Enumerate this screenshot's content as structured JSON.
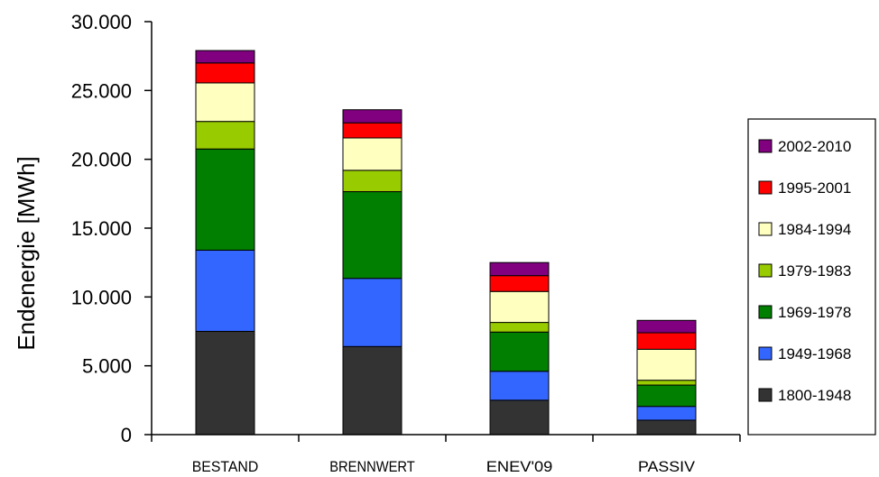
{
  "chart_data": {
    "type": "bar",
    "stacked": true,
    "ylabel": "Endenergie [MWh]",
    "xlabel": "",
    "ylim": [
      0,
      30000
    ],
    "yticks": [
      {
        "value": 0,
        "label": "0"
      },
      {
        "value": 5000,
        "label": "5.000"
      },
      {
        "value": 10000,
        "label": "10.000"
      },
      {
        "value": 15000,
        "label": "15.000"
      },
      {
        "value": 20000,
        "label": "20.000"
      },
      {
        "value": 25000,
        "label": "25.000"
      },
      {
        "value": 30000,
        "label": "30.000"
      }
    ],
    "grid": false,
    "legend_position": "right",
    "categories": [
      "BESTAND",
      "BRENNWERT",
      "ENEV'09",
      "PASSIV"
    ],
    "series": [
      {
        "name": "1800-1948",
        "color": "#333333",
        "values": [
          7500,
          6400,
          2500,
          1050
        ]
      },
      {
        "name": "1949-1968",
        "color": "#3366ff",
        "values": [
          5900,
          4950,
          2100,
          1000
        ]
      },
      {
        "name": "1969-1978",
        "color": "#007f00",
        "values": [
          7350,
          6300,
          2850,
          1550
        ]
      },
      {
        "name": "1979-1983",
        "color": "#99cc00",
        "values": [
          2000,
          1550,
          700,
          350
        ]
      },
      {
        "name": "1984-1994",
        "color": "#ffffbf",
        "values": [
          2800,
          2350,
          2250,
          2250
        ]
      },
      {
        "name": "1995-2001",
        "color": "#ff0000",
        "values": [
          1450,
          1100,
          1150,
          1200
        ]
      },
      {
        "name": "2002-2010",
        "color": "#800080",
        "values": [
          900,
          950,
          950,
          900
        ]
      }
    ]
  }
}
